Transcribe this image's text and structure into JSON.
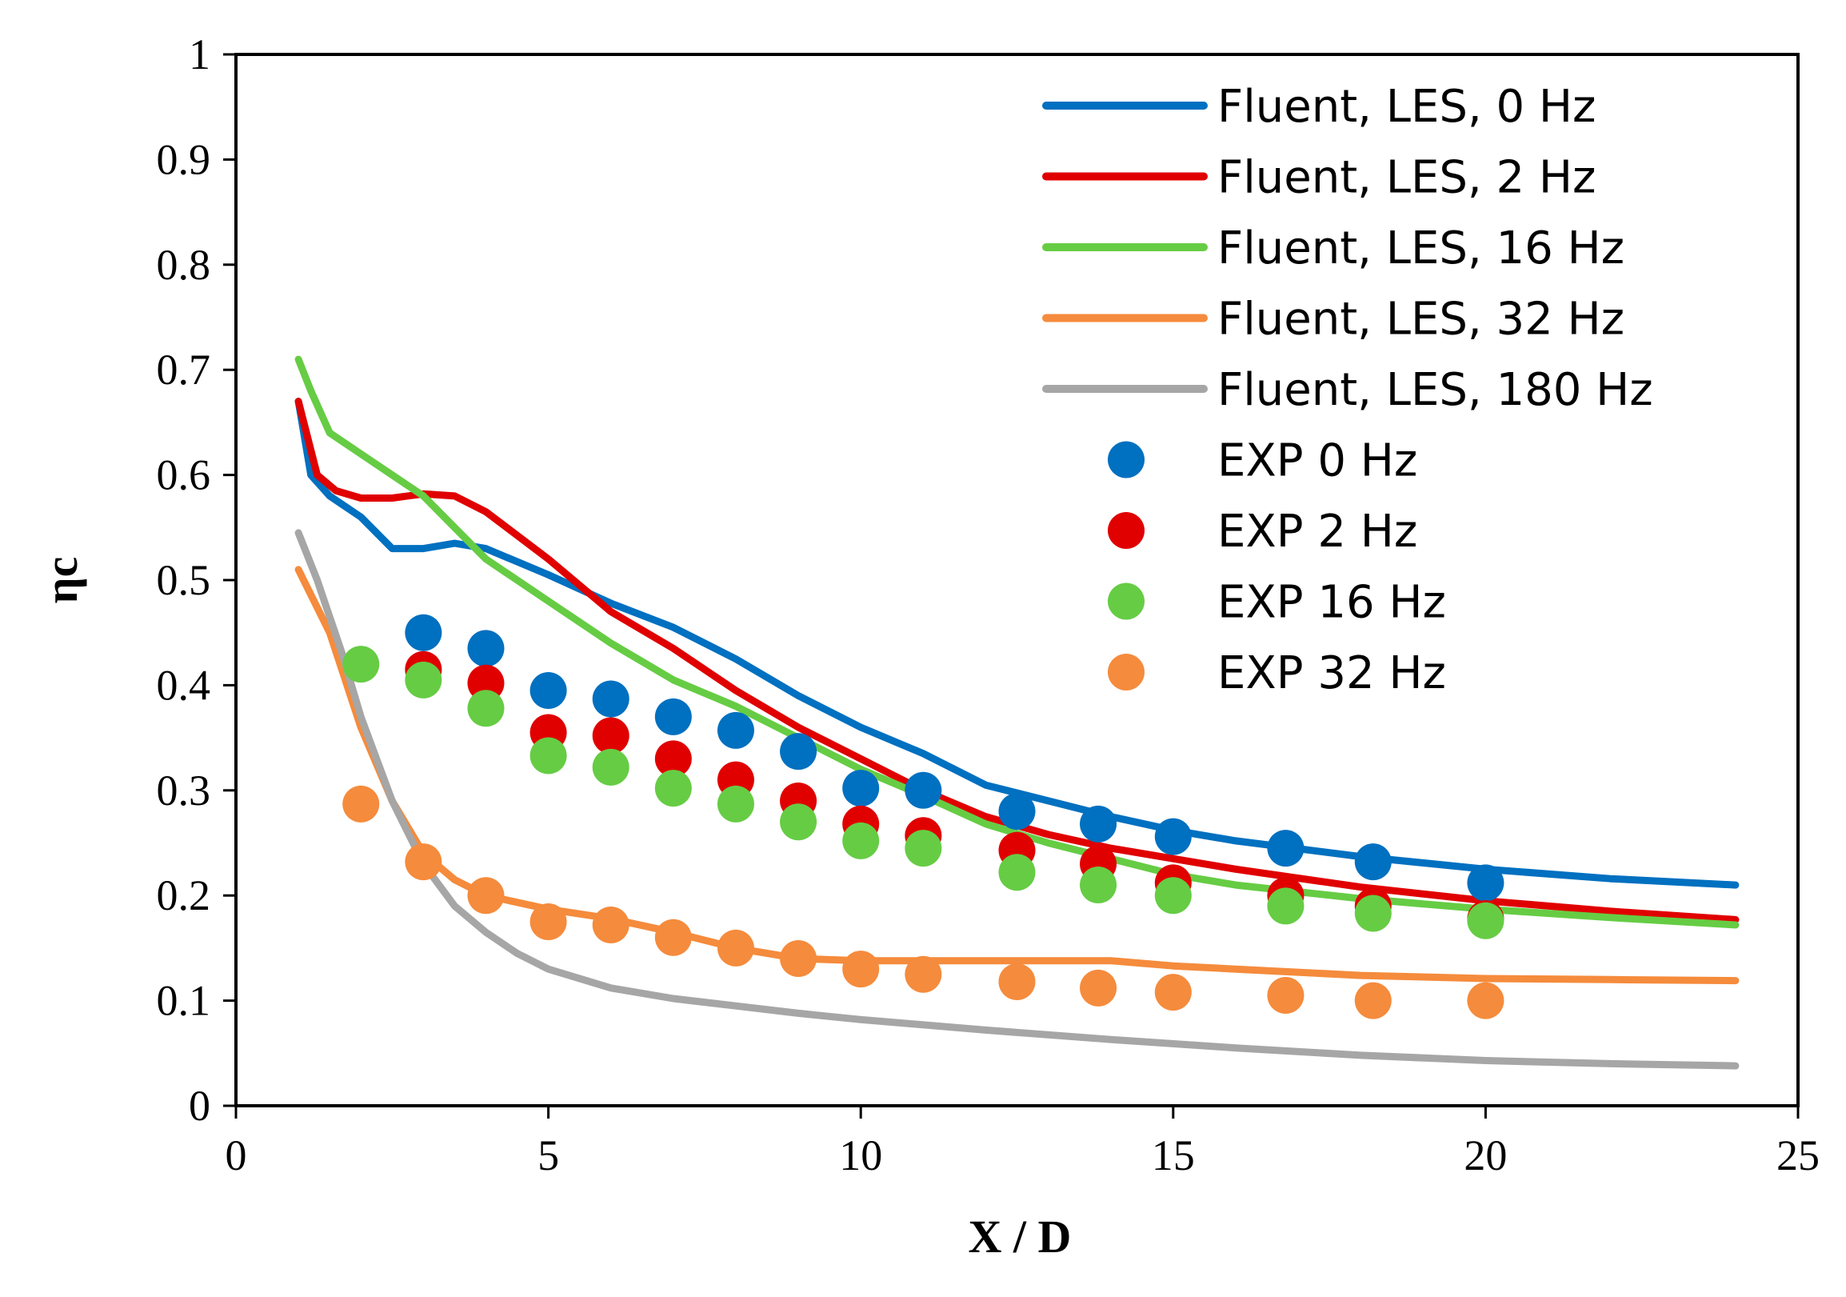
{
  "chart_data": {
    "type": "line",
    "title": "",
    "xlabel": "X / D",
    "ylabel_main": "η",
    "ylabel_sub": "c",
    "xlim": [
      0,
      25
    ],
    "ylim": [
      0,
      1
    ],
    "xticks": [
      0,
      5,
      10,
      15,
      20,
      25
    ],
    "yticks": [
      0,
      0.1,
      0.2,
      0.3,
      0.4,
      0.5,
      0.6,
      0.7,
      0.8,
      0.9,
      1
    ],
    "xtick_labels": [
      "0",
      "5",
      "10",
      "15",
      "20",
      "25"
    ],
    "ytick_labels": [
      "0",
      "0.1",
      "0.2",
      "0.3",
      "0.4",
      "0.5",
      "0.6",
      "0.7",
      "0.8",
      "0.9",
      "1"
    ],
    "grid": false,
    "legend_position": "top-right",
    "lines": [
      {
        "name": "Fluent, LES, 0 Hz",
        "color": "#0070C0",
        "x": [
          1,
          1.2,
          1.5,
          2,
          2.5,
          3,
          3.5,
          4,
          5,
          6,
          7,
          8,
          9,
          10,
          11,
          12,
          13,
          14,
          15,
          16,
          18,
          20,
          22,
          24
        ],
        "y": [
          0.67,
          0.6,
          0.58,
          0.56,
          0.53,
          0.53,
          0.535,
          0.53,
          0.505,
          0.478,
          0.455,
          0.425,
          0.39,
          0.36,
          0.335,
          0.305,
          0.29,
          0.275,
          0.262,
          0.252,
          0.237,
          0.225,
          0.216,
          0.21
        ]
      },
      {
        "name": "Fluent, LES, 2 Hz",
        "color": "#E00000",
        "x": [
          1,
          1.3,
          1.6,
          2,
          2.5,
          3,
          3.5,
          4,
          5,
          6,
          7,
          8,
          9,
          10,
          11,
          12,
          13,
          14,
          15,
          16,
          18,
          20,
          22,
          24
        ],
        "y": [
          0.67,
          0.6,
          0.585,
          0.578,
          0.578,
          0.582,
          0.58,
          0.565,
          0.52,
          0.47,
          0.435,
          0.395,
          0.36,
          0.33,
          0.3,
          0.275,
          0.258,
          0.245,
          0.235,
          0.225,
          0.208,
          0.195,
          0.185,
          0.177
        ]
      },
      {
        "name": "Fluent, LES, 16 Hz",
        "color": "#66CC44",
        "x": [
          1,
          1.2,
          1.5,
          2,
          2.5,
          3,
          3.5,
          4,
          5,
          6,
          7,
          8,
          9,
          10,
          11,
          12,
          13,
          14,
          15,
          16,
          18,
          20,
          22,
          24
        ],
        "y": [
          0.71,
          0.68,
          0.64,
          0.62,
          0.6,
          0.58,
          0.55,
          0.52,
          0.48,
          0.44,
          0.405,
          0.38,
          0.35,
          0.32,
          0.295,
          0.268,
          0.25,
          0.235,
          0.22,
          0.21,
          0.197,
          0.187,
          0.179,
          0.172
        ]
      },
      {
        "name": "Fluent, LES, 32 Hz",
        "color": "#F58B3C",
        "x": [
          1,
          1.5,
          2,
          2.5,
          3,
          3.5,
          4,
          5,
          6,
          7,
          8,
          9,
          10,
          11,
          12,
          13,
          14,
          15,
          16,
          18,
          20,
          22,
          24
        ],
        "y": [
          0.51,
          0.45,
          0.36,
          0.29,
          0.24,
          0.215,
          0.2,
          0.187,
          0.178,
          0.165,
          0.15,
          0.14,
          0.138,
          0.138,
          0.138,
          0.138,
          0.138,
          0.133,
          0.13,
          0.124,
          0.121,
          0.12,
          0.119
        ]
      },
      {
        "name": "Fluent, LES, 180 Hz",
        "color": "#A6A6A6",
        "x": [
          1,
          1.3,
          1.7,
          2,
          2.5,
          3,
          3.5,
          4,
          4.5,
          5,
          6,
          7,
          8,
          9,
          10,
          12,
          14,
          16,
          18,
          20,
          22,
          24
        ],
        "y": [
          0.545,
          0.5,
          0.43,
          0.37,
          0.29,
          0.23,
          0.19,
          0.165,
          0.145,
          0.13,
          0.112,
          0.102,
          0.095,
          0.088,
          0.082,
          0.072,
          0.063,
          0.055,
          0.048,
          0.043,
          0.04,
          0.038
        ]
      }
    ],
    "scatter": [
      {
        "name": "EXP 0 Hz",
        "color": "#0070C0",
        "x": [
          3,
          4,
          5,
          6,
          7,
          8,
          9,
          10,
          11,
          12.5,
          13.8,
          15,
          16.8,
          18.2,
          20
        ],
        "y": [
          0.45,
          0.435,
          0.395,
          0.387,
          0.37,
          0.357,
          0.337,
          0.302,
          0.3,
          0.28,
          0.268,
          0.256,
          0.245,
          0.232,
          0.212
        ]
      },
      {
        "name": "EXP 2 Hz",
        "color": "#E00000",
        "x": [
          3,
          4,
          5,
          6,
          7,
          8,
          9,
          10,
          11,
          12.5,
          13.8,
          15,
          16.8,
          18.2,
          20
        ],
        "y": [
          0.415,
          0.402,
          0.355,
          0.352,
          0.33,
          0.31,
          0.29,
          0.268,
          0.257,
          0.243,
          0.23,
          0.212,
          0.2,
          0.19,
          0.178
        ]
      },
      {
        "name": "EXP 16 Hz",
        "color": "#66CC44",
        "x": [
          2,
          3,
          4,
          5,
          6,
          7,
          8,
          9,
          10,
          11,
          12.5,
          13.8,
          15,
          16.8,
          18.2,
          20
        ],
        "y": [
          0.42,
          0.405,
          0.378,
          0.333,
          0.322,
          0.302,
          0.287,
          0.27,
          0.252,
          0.245,
          0.222,
          0.21,
          0.2,
          0.19,
          0.183,
          0.176
        ]
      },
      {
        "name": "EXP 32 Hz",
        "color": "#F58B3C",
        "x": [
          2,
          3,
          4,
          5,
          6,
          7,
          8,
          9,
          10,
          11,
          12.5,
          13.8,
          15,
          16.8,
          18.2,
          20
        ],
        "y": [
          0.287,
          0.232,
          0.2,
          0.175,
          0.172,
          0.16,
          0.15,
          0.14,
          0.13,
          0.125,
          0.118,
          0.112,
          0.108,
          0.105,
          0.1,
          0.1
        ]
      }
    ]
  }
}
